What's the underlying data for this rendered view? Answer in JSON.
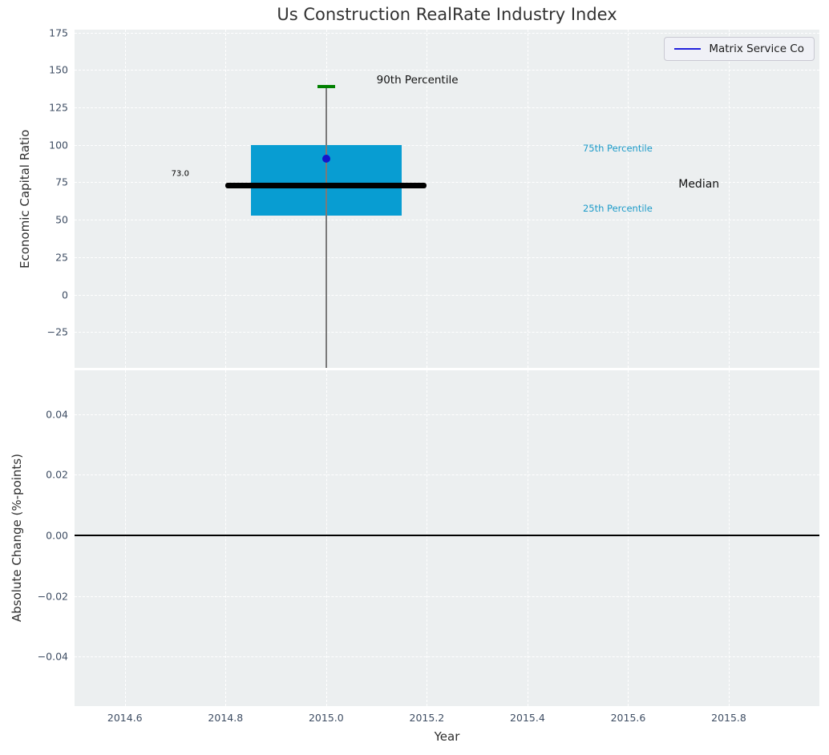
{
  "figure": {
    "title": "Us Construction RealRate Industry Index"
  },
  "legend": {
    "label": "Matrix Service Co"
  },
  "colors": {
    "figure_bg": "#ffffff",
    "axes_bg": "#eceff0",
    "grid": "#ffffff",
    "tick_label": "#3e4d63",
    "axis_label": "#2e2e2e",
    "title": "#323232",
    "box_fill": "#089dd2",
    "median_line": "#000000",
    "whisker": "#7a7a7a",
    "p90_cap": "#008000",
    "company_dot": "#1414cc",
    "legend_line": "#2222dd",
    "percentile_text": "#1d9bc9",
    "zero_line": "#000000"
  },
  "chart_data": [
    {
      "type": "boxplot",
      "title": "Us Construction RealRate Industry Index",
      "ylabel": "Economic Capital Ratio",
      "series_label": "Matrix Service Co",
      "x_center": 2015.0,
      "box_half_width": 0.15,
      "median_half_width": 0.2,
      "cap_half_width": 0.018,
      "percentiles": {
        "p90": 139,
        "p75": 100,
        "median": 73.0,
        "p25": 53
      },
      "median_value_label": "73.0",
      "whisker_low_clipped_at_axis_bottom": true,
      "company_point": {
        "name": "Matrix Service Co",
        "x": 2015.0,
        "y": 91
      },
      "xlim": [
        2014.5,
        2015.98
      ],
      "ylim": [
        -49,
        177
      ],
      "grid": true,
      "legend_position": "upper right",
      "yticks": [
        {
          "v": 175,
          "label": "175"
        },
        {
          "v": 150,
          "label": "150"
        },
        {
          "v": 125,
          "label": "125"
        },
        {
          "v": 100,
          "label": "100"
        },
        {
          "v": 75,
          "label": "75"
        },
        {
          "v": 50,
          "label": "50"
        },
        {
          "v": 25,
          "label": "25"
        },
        {
          "v": 0,
          "label": "0"
        },
        {
          "v": -25,
          "label": "−25"
        }
      ],
      "annotations": [
        {
          "id": "p90-percentile-label",
          "text": "90th Percentile",
          "x": 2015.1,
          "y": 143.0,
          "color": "#111111",
          "size": 13.5,
          "anchor": "left"
        },
        {
          "id": "p75-percentile-label",
          "text": "75th Percentile",
          "x": 2015.51,
          "y": 97.5,
          "color": "#1d9bc9",
          "size": 11.5,
          "anchor": "left"
        },
        {
          "id": "median-label",
          "text": "Median",
          "x": 2015.7,
          "y": 73.9,
          "color": "#111111",
          "size": 14.0,
          "anchor": "left"
        },
        {
          "id": "p25-percentile-label",
          "text": "25th Percentile",
          "x": 2015.51,
          "y": 57.8,
          "color": "#1d9bc9",
          "size": 11.5,
          "anchor": "left"
        },
        {
          "id": "median-value-label",
          "text": "73.0",
          "x": 2014.71,
          "y": 80.8,
          "color": "#000000",
          "size": 10.0,
          "anchor": "center"
        }
      ]
    },
    {
      "type": "line",
      "ylabel": "Absolute Change (%-points)",
      "xlabel": "Year",
      "xlim": [
        2014.5,
        2015.98
      ],
      "ylim": [
        -0.0563,
        0.0545
      ],
      "grid": true,
      "zero_line_y": 0.0,
      "series": [],
      "yticks": [
        {
          "v": 0.04,
          "label": "0.04"
        },
        {
          "v": 0.02,
          "label": "0.02"
        },
        {
          "v": 0,
          "label": "0.00"
        },
        {
          "v": -0.02,
          "label": "−0.02"
        },
        {
          "v": -0.04,
          "label": "−0.04"
        }
      ],
      "xticks": [
        {
          "v": 2014.6,
          "label": "2014.6"
        },
        {
          "v": 2014.8,
          "label": "2014.8"
        },
        {
          "v": 2015.0,
          "label": "2015.0"
        },
        {
          "v": 2015.2,
          "label": "2015.2"
        },
        {
          "v": 2015.4,
          "label": "2015.4"
        },
        {
          "v": 2015.6,
          "label": "2015.6"
        },
        {
          "v": 2015.8,
          "label": "2015.8"
        }
      ]
    }
  ]
}
